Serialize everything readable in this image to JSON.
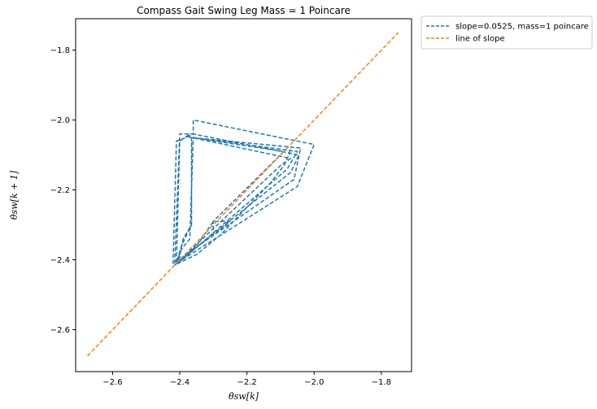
{
  "chart_data": {
    "type": "line",
    "title": "Compass Gait Swing Leg Mass = 1 Poincare",
    "xlabel": "θ̇sw[k]",
    "ylabel": "θ̇sw[k + 1]",
    "xlim": [
      -2.71,
      -1.71
    ],
    "ylim": [
      -2.72,
      -1.71
    ],
    "xticks": [
      -2.6,
      -2.4,
      -2.2,
      -2.0,
      -1.8
    ],
    "yticks": [
      -2.6,
      -2.4,
      -2.2,
      -2.0,
      -1.8
    ],
    "xtick_labels": [
      "−2.6",
      "−2.4",
      "−2.2",
      "−2.0",
      "−1.8"
    ],
    "ytick_labels": [
      "−2.6",
      "−2.4",
      "−2.2",
      "−2.0",
      "−1.8"
    ],
    "grid": false,
    "legend_position": "outside top-right",
    "series": [
      {
        "name": "slope=0.0525, mass=1 poincare",
        "color": "#1f77b4",
        "style": "dashed",
        "x": [
          -2.415,
          -2.4,
          -2.36,
          -2.36,
          -2.0,
          -2.05,
          -2.41,
          -2.4,
          -2.37,
          -2.37,
          -2.04,
          -2.06,
          -2.42,
          -2.41,
          -2.38,
          -2.36,
          -2.045,
          -2.07,
          -2.41,
          -2.395,
          -2.37,
          -2.36,
          -2.05,
          -2.08,
          -2.405,
          -2.39,
          -2.365,
          -2.365,
          -2.07,
          -2.1,
          -2.41,
          -2.395,
          -2.365,
          -2.365,
          -2.09,
          -2.3,
          -2.3,
          -2.25,
          -2.3,
          -2.35,
          -2.4,
          -2.415,
          -2.35,
          -2.28,
          -2.2,
          -2.13,
          -2.09,
          -2.075,
          -2.07
        ],
        "y": [
          -2.41,
          -2.04,
          -2.04,
          -2.0,
          -2.07,
          -2.19,
          -2.41,
          -2.06,
          -2.04,
          -2.05,
          -2.08,
          -2.17,
          -2.41,
          -2.06,
          -2.05,
          -2.04,
          -2.1,
          -2.15,
          -2.41,
          -2.37,
          -2.34,
          -2.05,
          -2.09,
          -2.14,
          -2.41,
          -2.34,
          -2.3,
          -2.05,
          -2.11,
          -2.13,
          -2.41,
          -2.36,
          -2.3,
          -2.05,
          -2.09,
          -2.29,
          -2.33,
          -2.29,
          -2.29,
          -2.36,
          -2.405,
          -2.415,
          -2.385,
          -2.33,
          -2.25,
          -2.18,
          -2.13,
          -2.1,
          -2.08
        ]
      },
      {
        "name": "line of slope",
        "color": "#ff7f0e",
        "style": "dashed",
        "x": [
          -2.675,
          -1.75
        ],
        "y": [
          -2.675,
          -1.75
        ]
      }
    ]
  }
}
